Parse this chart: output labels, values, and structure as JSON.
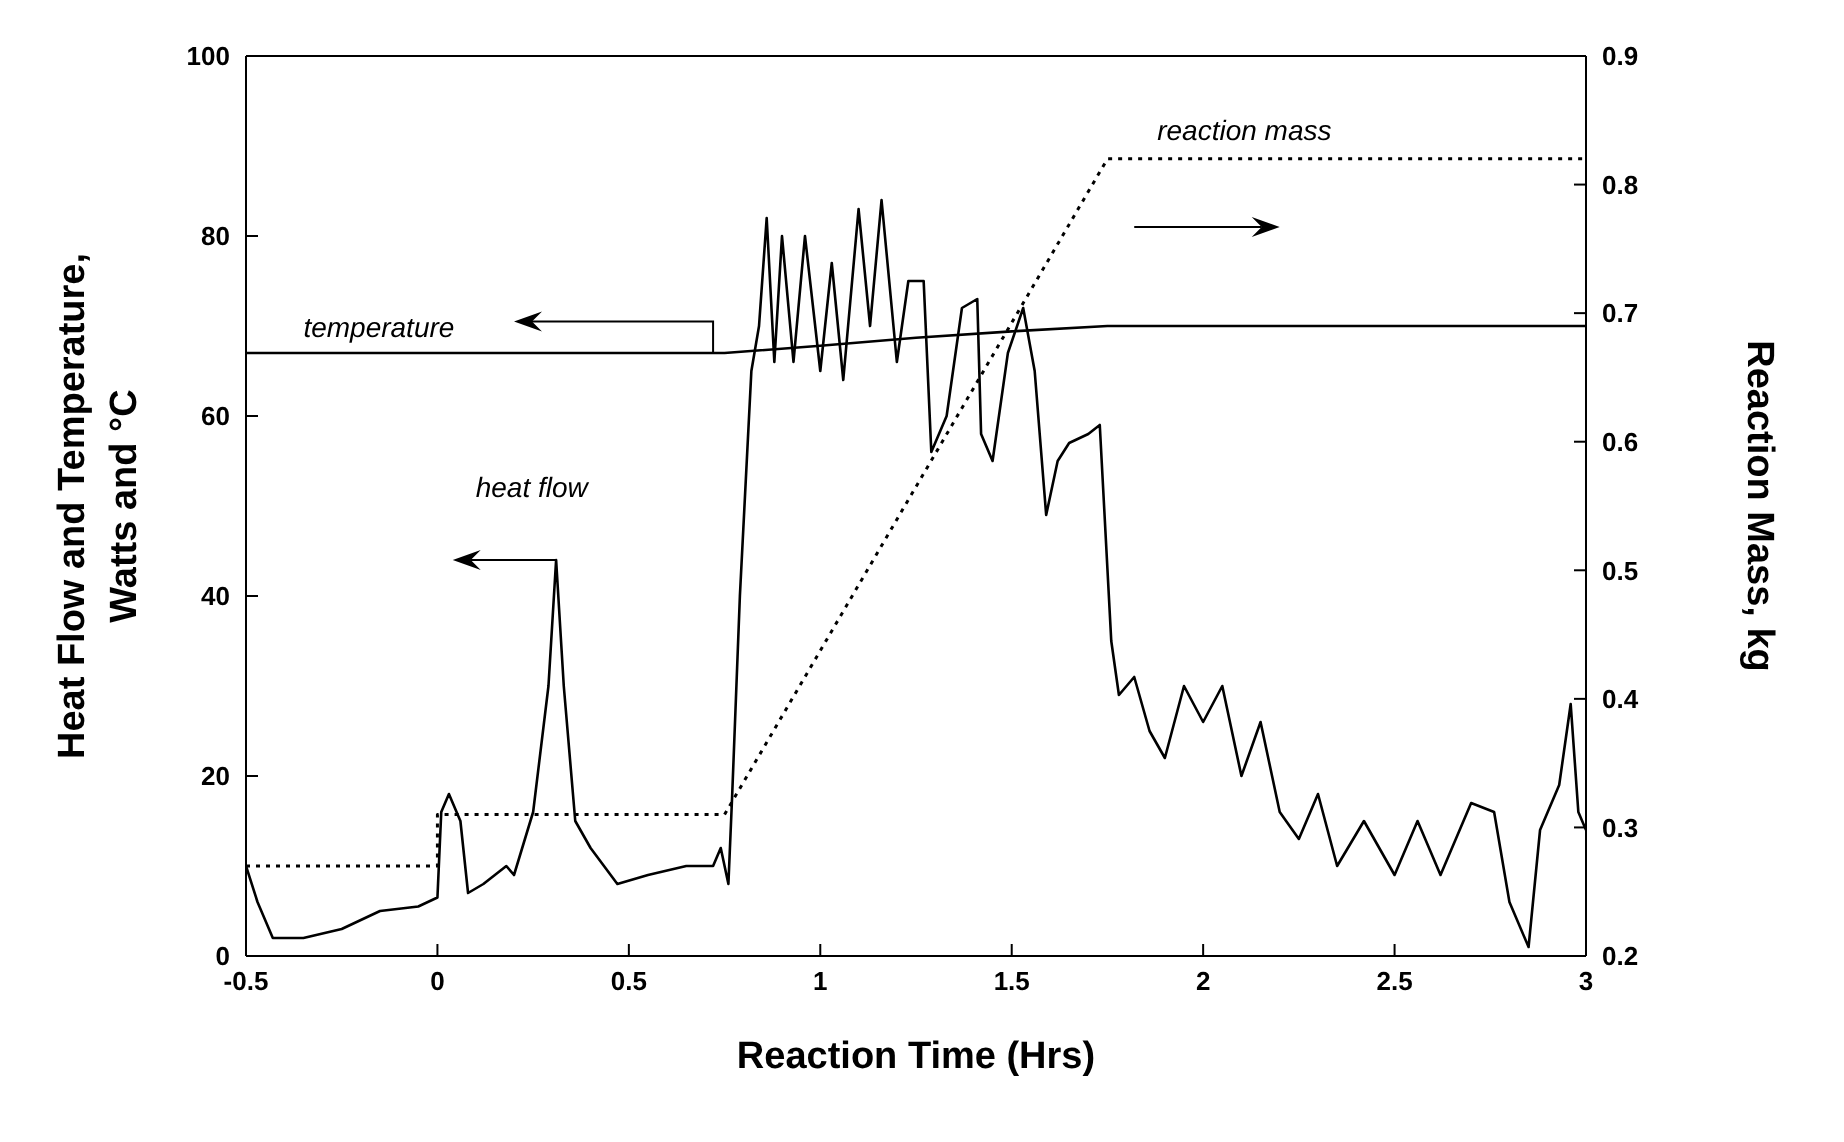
{
  "chart_data": {
    "type": "line",
    "xlabel": "Reaction Time (Hrs)",
    "ylabel": "Heat Flow and Temperature,\nWatts and °C",
    "y2label": "Reaction Mass, kg",
    "xlim": [
      -0.5,
      3
    ],
    "xticks": [
      -0.5,
      0,
      0.5,
      1,
      1.5,
      2,
      2.5,
      3
    ],
    "ylim": [
      0,
      100
    ],
    "yticks": [
      0,
      20,
      40,
      60,
      80,
      100
    ],
    "y2lim": [
      0.2,
      0.9
    ],
    "y2ticks": [
      0.2,
      0.3,
      0.4,
      0.5,
      0.6,
      0.7,
      0.8,
      0.9
    ],
    "marker": "none",
    "annotations": [
      "temperature",
      "heat flow",
      "reaction mass"
    ],
    "series": [
      {
        "color": "#000000",
        "line_style": "solid",
        "x": [
          -0.5,
          -0.47,
          -0.43,
          -0.35,
          -0.25,
          -0.15,
          -0.05,
          0.0,
          0.01,
          0.03,
          0.06,
          0.08,
          0.12,
          0.18,
          0.2,
          0.25,
          0.29,
          0.31,
          0.33,
          0.36,
          0.4,
          0.47,
          0.55,
          0.65,
          0.72,
          0.74,
          0.76,
          0.77,
          0.79,
          0.82,
          0.84,
          0.86,
          0.88,
          0.9,
          0.93,
          0.96,
          1.0,
          1.03,
          1.06,
          1.1,
          1.13,
          1.16,
          1.2,
          1.23,
          1.27,
          1.29,
          1.33,
          1.37,
          1.41,
          1.42,
          1.45,
          1.49,
          1.53,
          1.56,
          1.59,
          1.62,
          1.65,
          1.7,
          1.73,
          1.76,
          1.78,
          1.82,
          1.86,
          1.9,
          1.95,
          2.0,
          2.05,
          2.1,
          2.15,
          2.2,
          2.25,
          2.3,
          2.35,
          2.42,
          2.5,
          2.56,
          2.62,
          2.7,
          2.76,
          2.8,
          2.85,
          2.88,
          2.93,
          2.96,
          2.98,
          3.0
        ],
        "values": [
          10,
          6,
          2,
          2,
          3,
          5,
          5.5,
          6.5,
          16,
          18,
          15,
          7,
          8,
          10,
          9,
          16,
          30,
          44,
          30,
          15,
          12,
          8,
          9,
          10,
          10,
          12,
          8,
          18,
          40,
          65,
          70,
          82,
          66,
          80,
          66,
          80,
          65,
          77,
          64,
          83,
          70,
          84,
          66,
          75,
          75,
          56,
          60,
          72,
          73,
          58,
          55,
          67,
          72,
          65,
          49,
          55,
          57,
          58,
          59,
          35,
          29,
          31,
          25,
          22,
          30,
          26,
          30,
          20,
          26,
          16,
          13,
          18,
          10,
          15,
          9,
          15,
          9,
          17,
          16,
          6,
          1,
          14,
          19,
          28,
          16,
          14
        ]
      },
      {
        "color": "#000000",
        "line_style": "solid",
        "x": [
          -0.5,
          0.75,
          1.0,
          1.25,
          1.5,
          1.75,
          3.0
        ],
        "values": [
          67,
          67,
          67.8,
          68.7,
          69.4,
          70,
          70
        ]
      },
      {
        "color": "#000000",
        "line_style": "dotted",
        "axis": "y2",
        "x": [
          -0.5,
          0,
          0,
          0.75,
          1.75,
          3.0
        ],
        "values": [
          0.27,
          0.27,
          0.31,
          0.31,
          0.82,
          0.82
        ]
      }
    ]
  }
}
